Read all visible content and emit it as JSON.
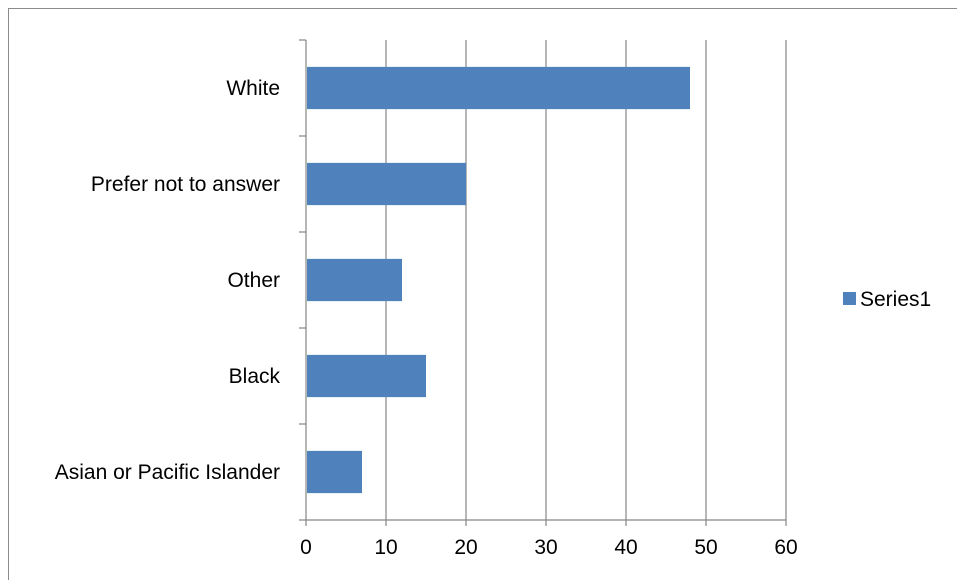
{
  "chart_data": {
    "type": "bar",
    "orientation": "horizontal",
    "categories": [
      "Asian or Pacific Islander",
      "Black",
      "Other",
      "Prefer not to answer",
      "White"
    ],
    "series": [
      {
        "name": "Series1",
        "values": [
          7,
          15,
          12,
          20,
          48
        ],
        "color": "#4f81bd"
      }
    ],
    "x_ticks": [
      "0",
      "10",
      "20",
      "30",
      "40",
      "50",
      "60"
    ],
    "xlim": [
      0,
      60
    ],
    "title": "",
    "xlabel": "",
    "ylabel": "",
    "grid": "vertical",
    "legend_position": "right",
    "gridline_color": "#868686",
    "axis_color": "#868686"
  }
}
